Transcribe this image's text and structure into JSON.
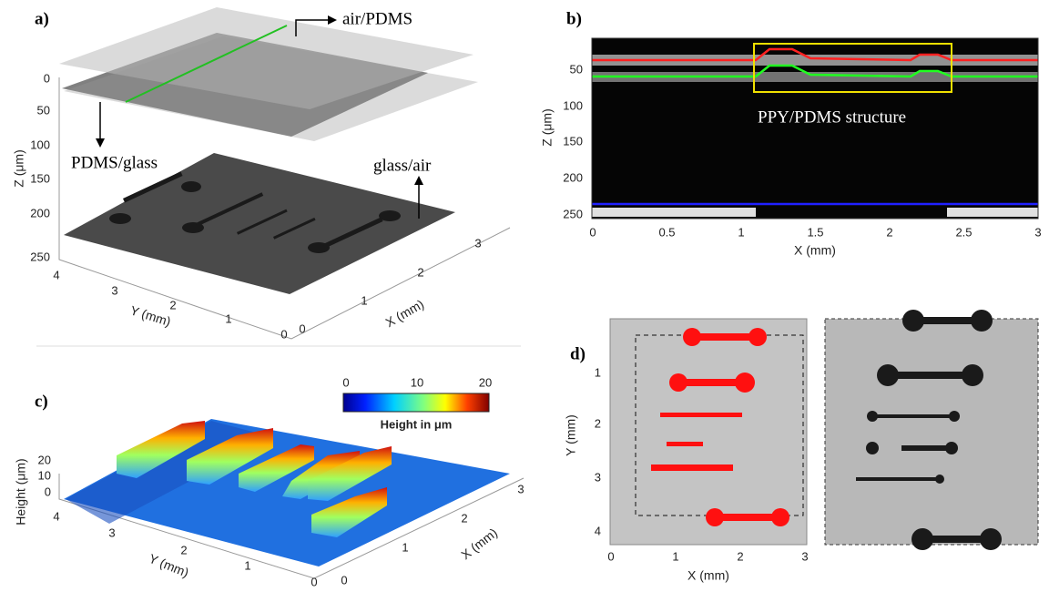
{
  "panel_a": {
    "label": "a)",
    "annotations": [
      "air/PDMS",
      "PDMS/glass",
      "glass/air"
    ],
    "z_label": "Z (μm)",
    "y_label": "Y (mm)",
    "x_label": "X (mm)",
    "z_ticks": [
      "0",
      "50",
      "100",
      "150",
      "200",
      "250"
    ],
    "y_ticks": [
      "4",
      "3",
      "2",
      "1",
      "0"
    ],
    "x_ticks": [
      "0",
      "1",
      "2",
      "3"
    ]
  },
  "panel_b": {
    "label": "b)",
    "annotation": "PPY/PDMS structure",
    "z_label": "Z (μm)",
    "x_label": "X (mm)",
    "z_ticks": [
      "50",
      "100",
      "150",
      "200",
      "250"
    ],
    "x_ticks": [
      "0",
      "0.5",
      "1",
      "1.5",
      "2",
      "2.5",
      "3"
    ]
  },
  "panel_c": {
    "label": "c)",
    "colorbar_title": "Height in μm",
    "colorbar_ticks": [
      "0",
      "10",
      "20"
    ],
    "z_label": "Height (μm)",
    "y_label": "Y (mm)",
    "x_label": "X (mm)",
    "z_ticks": [
      "20",
      "10",
      "0"
    ],
    "y_ticks": [
      "4",
      "3",
      "2",
      "1",
      "0"
    ],
    "x_ticks": [
      "0",
      "1",
      "2",
      "3"
    ]
  },
  "panel_d": {
    "label": "d)",
    "y_label": "Y (mm)",
    "x_label": "X (mm)",
    "y_ticks": [
      "1",
      "2",
      "3",
      "4"
    ],
    "x_ticks": [
      "0",
      "1",
      "2",
      "3"
    ]
  }
}
